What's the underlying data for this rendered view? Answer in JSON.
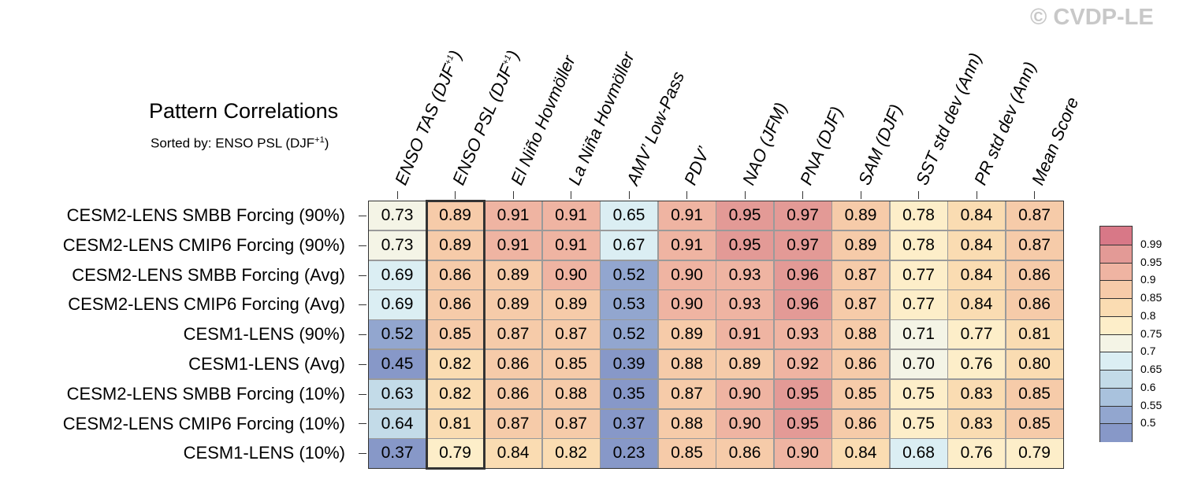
{
  "watermark": "© CVDP-LE",
  "chart_data": {
    "type": "heatmap",
    "title": "Pattern Correlations",
    "subtitle_prefix": "Sorted by: ENSO PSL (DJF",
    "subtitle_sup": "+1",
    "subtitle_suffix": ")",
    "highlight_column": "ENSO PSL (DJF+1)",
    "columns": [
      {
        "label": "ENSO TAS (DJF",
        "sup": "+1",
        "suffix": ")"
      },
      {
        "label": "ENSO PSL (DJF",
        "sup": "+1",
        "suffix": ")"
      },
      {
        "label": "El Niño Hovmöller",
        "sup": "",
        "suffix": ""
      },
      {
        "label": "La Niña Hovmöller",
        "sup": "",
        "suffix": ""
      },
      {
        "label": "AMV’ Low-Pass",
        "sup": "",
        "suffix": ""
      },
      {
        "label": "PDV’",
        "sup": "",
        "suffix": ""
      },
      {
        "label": "NAO (JFM)",
        "sup": "",
        "suffix": ""
      },
      {
        "label": "PNA (DJF)",
        "sup": "",
        "suffix": ""
      },
      {
        "label": "SAM (DJF)",
        "sup": "",
        "suffix": ""
      },
      {
        "label": "SST std dev (Ann)",
        "sup": "",
        "suffix": ""
      },
      {
        "label": "PR std dev (Ann)",
        "sup": "",
        "suffix": ""
      },
      {
        "label": "Mean Score",
        "sup": "",
        "suffix": ""
      }
    ],
    "rows": [
      {
        "name": "CESM2-LENS SMBB Forcing (90%)",
        "values": [
          "0.73",
          "0.89",
          "0.91",
          "0.91",
          "0.65",
          "0.91",
          "0.95",
          "0.97",
          "0.89",
          "0.78",
          "0.84",
          "0.87"
        ]
      },
      {
        "name": "CESM2-LENS CMIP6 Forcing (90%)",
        "values": [
          "0.73",
          "0.89",
          "0.91",
          "0.91",
          "0.67",
          "0.91",
          "0.95",
          "0.97",
          "0.89",
          "0.78",
          "0.84",
          "0.87"
        ]
      },
      {
        "name": "CESM2-LENS SMBB Forcing (Avg)",
        "values": [
          "0.69",
          "0.86",
          "0.89",
          "0.90",
          "0.52",
          "0.90",
          "0.93",
          "0.96",
          "0.87",
          "0.77",
          "0.84",
          "0.86"
        ]
      },
      {
        "name": "CESM2-LENS CMIP6 Forcing (Avg)",
        "values": [
          "0.69",
          "0.86",
          "0.89",
          "0.89",
          "0.53",
          "0.90",
          "0.93",
          "0.96",
          "0.87",
          "0.77",
          "0.84",
          "0.86"
        ]
      },
      {
        "name": "CESM1-LENS (90%)",
        "values": [
          "0.52",
          "0.85",
          "0.87",
          "0.87",
          "0.52",
          "0.89",
          "0.91",
          "0.93",
          "0.88",
          "0.71",
          "0.77",
          "0.81"
        ]
      },
      {
        "name": "CESM1-LENS (Avg)",
        "values": [
          "0.45",
          "0.82",
          "0.86",
          "0.85",
          "0.39",
          "0.88",
          "0.89",
          "0.92",
          "0.86",
          "0.70",
          "0.76",
          "0.80"
        ]
      },
      {
        "name": "CESM2-LENS SMBB Forcing (10%)",
        "values": [
          "0.63",
          "0.82",
          "0.86",
          "0.88",
          "0.35",
          "0.87",
          "0.90",
          "0.95",
          "0.85",
          "0.75",
          "0.83",
          "0.85"
        ]
      },
      {
        "name": "CESM2-LENS CMIP6 Forcing (10%)",
        "values": [
          "0.64",
          "0.81",
          "0.87",
          "0.87",
          "0.37",
          "0.88",
          "0.90",
          "0.95",
          "0.86",
          "0.75",
          "0.83",
          "0.85"
        ]
      },
      {
        "name": "CESM1-LENS (10%)",
        "values": [
          "0.37",
          "0.79",
          "0.84",
          "0.82",
          "0.23",
          "0.85",
          "0.86",
          "0.90",
          "0.84",
          "0.68",
          "0.76",
          "0.79"
        ]
      }
    ],
    "colorbar": {
      "labels": [
        "0.99",
        "0.95",
        "0.9",
        "0.85",
        "0.8",
        "0.75",
        "0.7",
        "0.65",
        "0.6",
        "0.55",
        "0.5"
      ],
      "colors": [
        "#d87887",
        "#e39a96",
        "#efb4a2",
        "#f6cba9",
        "#fadcb2",
        "#fdeec9",
        "#f4f4e6",
        "#dbeef3",
        "#c3dbe8",
        "#a9c2dd",
        "#92a6cf",
        "#8798c8"
      ]
    }
  }
}
